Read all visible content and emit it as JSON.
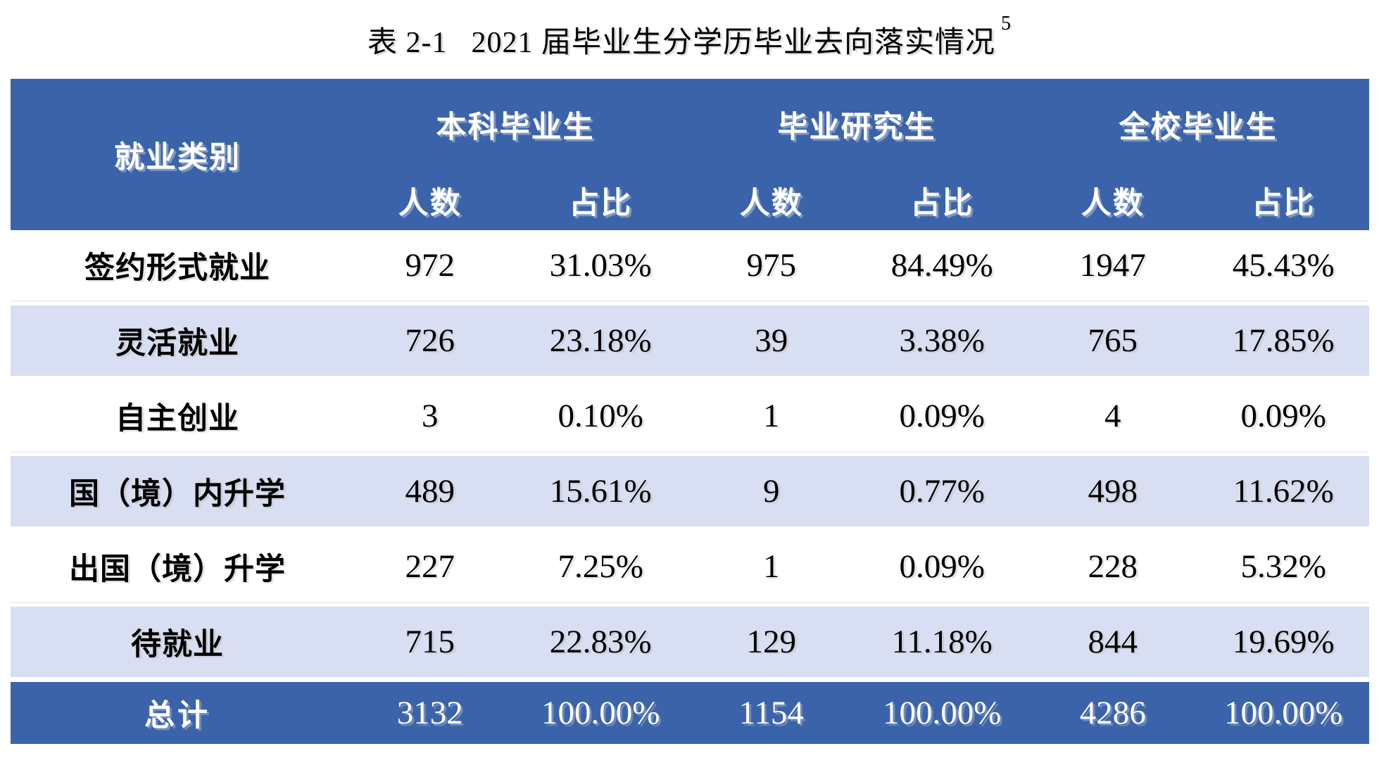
{
  "colors": {
    "header_blue": "#3A63A9",
    "row_lavender": "#D9DFF2",
    "row_white": "#FFFFFF",
    "header_text": "#FFFFFF",
    "body_text": "#000000"
  },
  "title": {
    "label": "表 2-1",
    "text": "2021 届毕业生分学历毕业去向落实情况",
    "footnote": "5"
  },
  "table": {
    "category_header": "就业类别",
    "groups": [
      {
        "label": "本科毕业生",
        "sub": [
          "人数",
          "占比"
        ]
      },
      {
        "label": "毕业研究生",
        "sub": [
          "人数",
          "占比"
        ]
      },
      {
        "label": "全校毕业生",
        "sub": [
          "人数",
          "占比"
        ]
      }
    ],
    "rows": [
      {
        "category": "签约形式就业",
        "values": [
          "972",
          "31.03%",
          "975",
          "84.49%",
          "1947",
          "45.43%"
        ]
      },
      {
        "category": "灵活就业",
        "values": [
          "726",
          "23.18%",
          "39",
          "3.38%",
          "765",
          "17.85%"
        ]
      },
      {
        "category": "自主创业",
        "values": [
          "3",
          "0.10%",
          "1",
          "0.09%",
          "4",
          "0.09%"
        ]
      },
      {
        "category": "国（境）内升学",
        "values": [
          "489",
          "15.61%",
          "9",
          "0.77%",
          "498",
          "11.62%"
        ]
      },
      {
        "category": "出国（境）升学",
        "values": [
          "227",
          "7.25%",
          "1",
          "0.09%",
          "228",
          "5.32%"
        ]
      },
      {
        "category": "待就业",
        "values": [
          "715",
          "22.83%",
          "129",
          "11.18%",
          "844",
          "19.69%"
        ]
      }
    ],
    "total_row": {
      "category": "总计",
      "values": [
        "3132",
        "100.00%",
        "1154",
        "100.00%",
        "4286",
        "100.00%"
      ]
    }
  }
}
